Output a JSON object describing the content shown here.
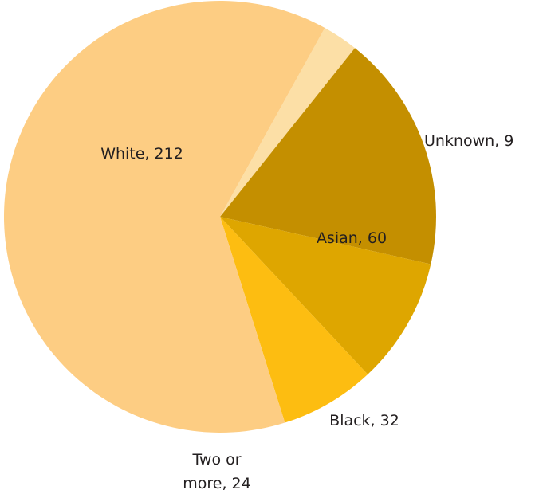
{
  "chart_data": {
    "type": "pie",
    "title": "",
    "slices": [
      {
        "label_lines": [
          "Unknown, 9"
        ],
        "category": "Unknown",
        "value": 9,
        "color": "#FCDFA6"
      },
      {
        "label_lines": [
          "Asian, 60"
        ],
        "category": "Asian",
        "value": 60,
        "color": "#C48F00"
      },
      {
        "label_lines": [
          "Black, 32"
        ],
        "category": "Black",
        "value": 32,
        "color": "#DEA600"
      },
      {
        "label_lines": [
          "Two or",
          "more, 24"
        ],
        "category": "Two or more",
        "value": 24,
        "color": "#FDBD11"
      },
      {
        "label_lines": [
          "White, 212"
        ],
        "category": "White",
        "value": 212,
        "color": "#FDCD83"
      }
    ],
    "start_angle_deg": -61,
    "direction": "clockwise",
    "legend": "none",
    "data_labels": "category-and-value"
  }
}
